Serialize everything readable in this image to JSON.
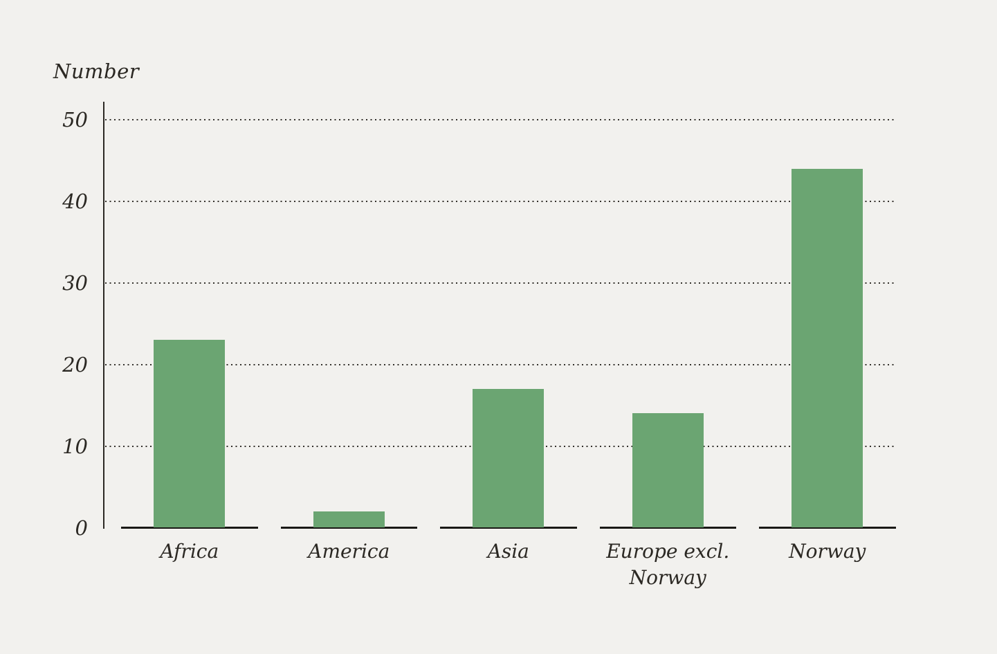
{
  "chart_data": {
    "type": "bar",
    "title": "Number",
    "ylabel": "Number",
    "xlabel": "",
    "categories": [
      "Africa",
      "America",
      "Asia",
      "Europe excl.\nNorway",
      "Norway"
    ],
    "values": [
      23,
      2,
      17,
      14,
      44
    ],
    "yticks": [
      0,
      10,
      20,
      30,
      40,
      50
    ],
    "ylim": [
      0,
      50
    ],
    "grid": "horizontal-dotted",
    "legend": "none",
    "colors": {
      "background": "#f2f1ee",
      "bar": "#6ba572",
      "text": "#2b2823",
      "axis": "#2b2823",
      "gridline": "#33302b",
      "baseline": "#1a1916"
    }
  }
}
